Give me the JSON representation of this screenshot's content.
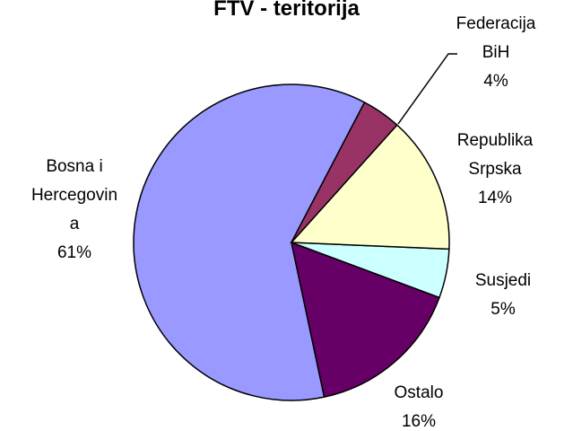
{
  "chart_data": {
    "type": "pie",
    "title": "FTV - teritorija",
    "categories": [
      "Federacija BiH",
      "Republika Srpska",
      "Susjedi",
      "Ostalo",
      "Bosna i Hercegovina"
    ],
    "values": [
      4,
      14,
      5,
      16,
      61
    ],
    "value_labels": [
      "4%",
      "14%",
      "5%",
      "16%",
      "61%"
    ],
    "colors": [
      "#993366",
      "#ffffcc",
      "#ccffff",
      "#660066",
      "#9999ff"
    ]
  }
}
